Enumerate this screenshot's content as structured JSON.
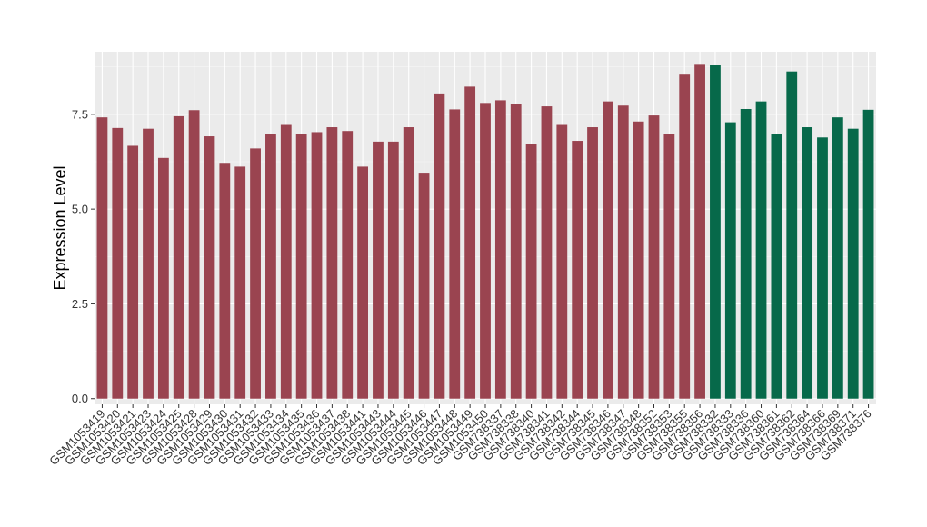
{
  "colors": {
    "panel_background": "#EBEBEB",
    "grid_major": "#FFFFFF",
    "grid_minor": "#F5F5F5",
    "series_a": "#9A4450",
    "series_b": "#07694A",
    "tick_text": "#333333"
  },
  "chart_data": {
    "type": "bar",
    "title": "",
    "xlabel": "",
    "ylabel": "Expression Level",
    "ylim": [
      -0.15,
      9.15
    ],
    "yticks": [
      0.0,
      2.5,
      5.0,
      7.5
    ],
    "ytick_labels": [
      "0.0",
      "2.5",
      "5.0",
      "7.5"
    ],
    "grid": true,
    "legend": "none",
    "categories": [
      "GSM1053419",
      "GSM1053420",
      "GSM1053421",
      "GSM1053423",
      "GSM1053424",
      "GSM1053425",
      "GSM1053428",
      "GSM1053429",
      "GSM1053430",
      "GSM1053431",
      "GSM1053432",
      "GSM1053433",
      "GSM1053434",
      "GSM1053435",
      "GSM1053436",
      "GSM1053437",
      "GSM1053438",
      "GSM1053441",
      "GSM1053443",
      "GSM1053444",
      "GSM1053445",
      "GSM1053446",
      "GSM1053447",
      "GSM1053448",
      "GSM1053449",
      "GSM1053450",
      "GSM738337",
      "GSM738338",
      "GSM738340",
      "GSM738341",
      "GSM738342",
      "GSM738344",
      "GSM738345",
      "GSM738346",
      "GSM738347",
      "GSM738348",
      "GSM738352",
      "GSM738353",
      "GSM738355",
      "GSM738356",
      "GSM738332",
      "GSM738333",
      "GSM738336",
      "GSM738360",
      "GSM738361",
      "GSM738362",
      "GSM738364",
      "GSM738366",
      "GSM738369",
      "GSM738371",
      "GSM738376"
    ],
    "values": [
      7.42,
      7.14,
      6.67,
      7.12,
      6.35,
      7.45,
      7.61,
      6.92,
      6.22,
      6.12,
      6.6,
      6.97,
      7.22,
      6.97,
      7.03,
      7.16,
      7.06,
      6.12,
      6.78,
      6.78,
      7.16,
      5.96,
      8.05,
      7.63,
      8.23,
      7.8,
      7.87,
      7.78,
      6.72,
      7.71,
      7.22,
      6.8,
      7.16,
      7.84,
      7.73,
      7.31,
      7.47,
      6.97,
      8.57,
      8.83,
      8.8,
      7.29,
      7.64,
      7.84,
      6.99,
      8.63,
      7.16,
      6.89,
      7.42,
      7.12,
      7.62
    ],
    "group": [
      "a",
      "a",
      "a",
      "a",
      "a",
      "a",
      "a",
      "a",
      "a",
      "a",
      "a",
      "a",
      "a",
      "a",
      "a",
      "a",
      "a",
      "a",
      "a",
      "a",
      "a",
      "a",
      "a",
      "a",
      "a",
      "a",
      "a",
      "a",
      "a",
      "a",
      "a",
      "a",
      "a",
      "a",
      "a",
      "a",
      "a",
      "a",
      "a",
      "a",
      "b",
      "b",
      "b",
      "b",
      "b",
      "b",
      "b",
      "b",
      "b",
      "b",
      "b"
    ]
  }
}
